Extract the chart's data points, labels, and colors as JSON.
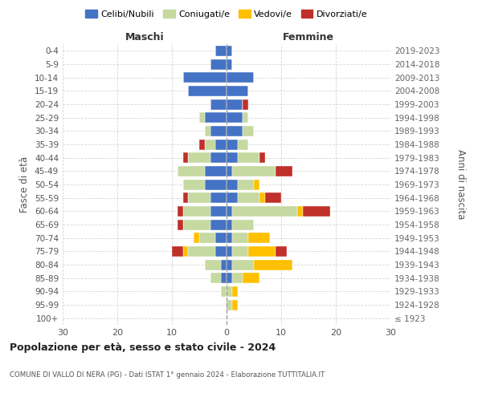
{
  "age_groups": [
    "100+",
    "95-99",
    "90-94",
    "85-89",
    "80-84",
    "75-79",
    "70-74",
    "65-69",
    "60-64",
    "55-59",
    "50-54",
    "45-49",
    "40-44",
    "35-39",
    "30-34",
    "25-29",
    "20-24",
    "15-19",
    "10-14",
    "5-9",
    "0-4"
  ],
  "birth_years": [
    "≤ 1923",
    "1924-1928",
    "1929-1933",
    "1934-1938",
    "1939-1943",
    "1944-1948",
    "1949-1953",
    "1954-1958",
    "1959-1963",
    "1964-1968",
    "1969-1973",
    "1974-1978",
    "1979-1983",
    "1984-1988",
    "1989-1993",
    "1994-1998",
    "1999-2003",
    "2004-2008",
    "2009-2013",
    "2014-2018",
    "2019-2023"
  ],
  "colors": {
    "celibe": "#4472c4",
    "coniugato": "#c5d9a0",
    "vedovo": "#ffc000",
    "divorziato": "#c0302a"
  },
  "maschi": {
    "celibe": [
      0,
      0,
      0,
      1,
      1,
      2,
      2,
      3,
      3,
      3,
      4,
      4,
      3,
      2,
      3,
      4,
      3,
      7,
      8,
      3,
      2
    ],
    "coniugato": [
      0,
      0,
      1,
      2,
      3,
      5,
      3,
      5,
      5,
      4,
      4,
      5,
      4,
      2,
      1,
      1,
      0,
      0,
      0,
      0,
      0
    ],
    "vedovo": [
      0,
      0,
      0,
      0,
      0,
      1,
      1,
      0,
      0,
      0,
      0,
      0,
      0,
      0,
      0,
      0,
      0,
      0,
      0,
      0,
      0
    ],
    "divorziato": [
      0,
      0,
      0,
      0,
      0,
      2,
      0,
      1,
      1,
      1,
      0,
      0,
      1,
      1,
      0,
      0,
      0,
      0,
      0,
      0,
      0
    ]
  },
  "femmine": {
    "celibe": [
      0,
      0,
      0,
      1,
      1,
      1,
      1,
      1,
      1,
      2,
      2,
      1,
      2,
      2,
      3,
      3,
      3,
      4,
      5,
      1,
      1
    ],
    "coniugato": [
      0,
      1,
      1,
      2,
      4,
      3,
      3,
      4,
      12,
      4,
      3,
      8,
      4,
      2,
      2,
      1,
      0,
      0,
      0,
      0,
      0
    ],
    "vedovo": [
      0,
      1,
      1,
      3,
      7,
      5,
      4,
      0,
      1,
      1,
      1,
      0,
      0,
      0,
      0,
      0,
      0,
      0,
      0,
      0,
      0
    ],
    "divorziato": [
      0,
      0,
      0,
      0,
      0,
      2,
      0,
      0,
      5,
      3,
      0,
      3,
      1,
      0,
      0,
      0,
      1,
      0,
      0,
      0,
      0
    ]
  },
  "xlim": 30,
  "title": "Popolazione per età, sesso e stato civile - 2024",
  "subtitle": "COMUNE DI VALLO DI NERA (PG) - Dati ISTAT 1° gennaio 2024 - Elaborazione TUTTITALIA.IT",
  "ylabel_left": "Fasce di età",
  "ylabel_right": "Anni di nascita",
  "header_maschi": "Maschi",
  "header_femmine": "Femmine",
  "legend_labels": [
    "Celibi/Nubili",
    "Coniugati/e",
    "Vedovi/e",
    "Divorziati/e"
  ],
  "background_color": "#ffffff",
  "grid_color": "#cccccc"
}
